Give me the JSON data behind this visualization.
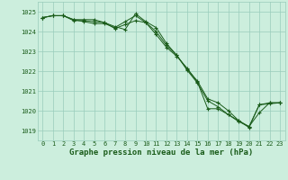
{
  "title": "Graphe pression niveau de la mer (hPa)",
  "background_color": "#cceedd",
  "grid_color": "#99ccbb",
  "line_color": "#1a5c1a",
  "x_labels": [
    "0",
    "1",
    "2",
    "3",
    "4",
    "5",
    "6",
    "7",
    "8",
    "9",
    "10",
    "11",
    "12",
    "13",
    "14",
    "15",
    "16",
    "17",
    "18",
    "19",
    "20",
    "21",
    "22",
    "23"
  ],
  "ylim": [
    1018.5,
    1025.5
  ],
  "yticks": [
    1019,
    1020,
    1021,
    1022,
    1023,
    1024,
    1025
  ],
  "series1": [
    1024.7,
    1024.8,
    1024.8,
    1024.6,
    1024.6,
    1024.6,
    1024.45,
    1024.25,
    1024.1,
    1024.9,
    1024.5,
    1024.2,
    1023.4,
    1022.8,
    1022.1,
    1021.5,
    1020.6,
    1020.4,
    1020.0,
    1019.5,
    1019.2,
    1019.9,
    1020.4,
    1020.4
  ],
  "series2": [
    1024.7,
    1024.8,
    1024.8,
    1024.55,
    1024.55,
    1024.5,
    1024.45,
    1024.15,
    1024.35,
    1024.55,
    1024.45,
    1023.85,
    1023.2,
    1022.75,
    1022.15,
    1021.45,
    1020.1,
    1020.1,
    1019.8,
    1019.45,
    1019.2,
    1020.3,
    1020.4,
    1020.4
  ],
  "series3": [
    1024.7,
    1024.8,
    1024.8,
    1024.6,
    1024.5,
    1024.4,
    1024.4,
    1024.2,
    1024.5,
    1024.8,
    1024.45,
    1024.0,
    1023.3,
    1022.8,
    1022.05,
    1021.4,
    1020.5,
    1020.2,
    1019.8,
    1019.5,
    1019.15,
    1020.3,
    1020.35,
    1020.4
  ]
}
